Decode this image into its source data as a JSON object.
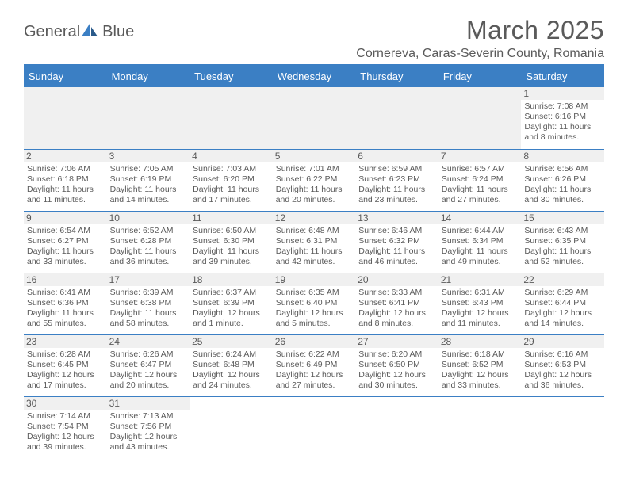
{
  "logo": {
    "text1": "General",
    "text2": "Blue"
  },
  "title": "March 2025",
  "location": "Cornereva, Caras-Severin County, Romania",
  "colors": {
    "accent": "#3b7fc4",
    "text": "#5a5a5a",
    "daybg": "#f0f0f0",
    "bg": "#ffffff"
  },
  "typography": {
    "title_fontsize": 32,
    "location_fontsize": 16,
    "header_fontsize": 13,
    "cell_fontsize": 10.5
  },
  "weekdays": [
    "Sunday",
    "Monday",
    "Tuesday",
    "Wednesday",
    "Thursday",
    "Friday",
    "Saturday"
  ],
  "weeks": [
    [
      null,
      null,
      null,
      null,
      null,
      null,
      {
        "d": "1",
        "sr": "7:08 AM",
        "ss": "6:16 PM",
        "dl": "11 hours and 8 minutes."
      }
    ],
    [
      {
        "d": "2",
        "sr": "7:06 AM",
        "ss": "6:18 PM",
        "dl": "11 hours and 11 minutes."
      },
      {
        "d": "3",
        "sr": "7:05 AM",
        "ss": "6:19 PM",
        "dl": "11 hours and 14 minutes."
      },
      {
        "d": "4",
        "sr": "7:03 AM",
        "ss": "6:20 PM",
        "dl": "11 hours and 17 minutes."
      },
      {
        "d": "5",
        "sr": "7:01 AM",
        "ss": "6:22 PM",
        "dl": "11 hours and 20 minutes."
      },
      {
        "d": "6",
        "sr": "6:59 AM",
        "ss": "6:23 PM",
        "dl": "11 hours and 23 minutes."
      },
      {
        "d": "7",
        "sr": "6:57 AM",
        "ss": "6:24 PM",
        "dl": "11 hours and 27 minutes."
      },
      {
        "d": "8",
        "sr": "6:56 AM",
        "ss": "6:26 PM",
        "dl": "11 hours and 30 minutes."
      }
    ],
    [
      {
        "d": "9",
        "sr": "6:54 AM",
        "ss": "6:27 PM",
        "dl": "11 hours and 33 minutes."
      },
      {
        "d": "10",
        "sr": "6:52 AM",
        "ss": "6:28 PM",
        "dl": "11 hours and 36 minutes."
      },
      {
        "d": "11",
        "sr": "6:50 AM",
        "ss": "6:30 PM",
        "dl": "11 hours and 39 minutes."
      },
      {
        "d": "12",
        "sr": "6:48 AM",
        "ss": "6:31 PM",
        "dl": "11 hours and 42 minutes."
      },
      {
        "d": "13",
        "sr": "6:46 AM",
        "ss": "6:32 PM",
        "dl": "11 hours and 46 minutes."
      },
      {
        "d": "14",
        "sr": "6:44 AM",
        "ss": "6:34 PM",
        "dl": "11 hours and 49 minutes."
      },
      {
        "d": "15",
        "sr": "6:43 AM",
        "ss": "6:35 PM",
        "dl": "11 hours and 52 minutes."
      }
    ],
    [
      {
        "d": "16",
        "sr": "6:41 AM",
        "ss": "6:36 PM",
        "dl": "11 hours and 55 minutes."
      },
      {
        "d": "17",
        "sr": "6:39 AM",
        "ss": "6:38 PM",
        "dl": "11 hours and 58 minutes."
      },
      {
        "d": "18",
        "sr": "6:37 AM",
        "ss": "6:39 PM",
        "dl": "12 hours and 1 minute."
      },
      {
        "d": "19",
        "sr": "6:35 AM",
        "ss": "6:40 PM",
        "dl": "12 hours and 5 minutes."
      },
      {
        "d": "20",
        "sr": "6:33 AM",
        "ss": "6:41 PM",
        "dl": "12 hours and 8 minutes."
      },
      {
        "d": "21",
        "sr": "6:31 AM",
        "ss": "6:43 PM",
        "dl": "12 hours and 11 minutes."
      },
      {
        "d": "22",
        "sr": "6:29 AM",
        "ss": "6:44 PM",
        "dl": "12 hours and 14 minutes."
      }
    ],
    [
      {
        "d": "23",
        "sr": "6:28 AM",
        "ss": "6:45 PM",
        "dl": "12 hours and 17 minutes."
      },
      {
        "d": "24",
        "sr": "6:26 AM",
        "ss": "6:47 PM",
        "dl": "12 hours and 20 minutes."
      },
      {
        "d": "25",
        "sr": "6:24 AM",
        "ss": "6:48 PM",
        "dl": "12 hours and 24 minutes."
      },
      {
        "d": "26",
        "sr": "6:22 AM",
        "ss": "6:49 PM",
        "dl": "12 hours and 27 minutes."
      },
      {
        "d": "27",
        "sr": "6:20 AM",
        "ss": "6:50 PM",
        "dl": "12 hours and 30 minutes."
      },
      {
        "d": "28",
        "sr": "6:18 AM",
        "ss": "6:52 PM",
        "dl": "12 hours and 33 minutes."
      },
      {
        "d": "29",
        "sr": "6:16 AM",
        "ss": "6:53 PM",
        "dl": "12 hours and 36 minutes."
      }
    ],
    [
      {
        "d": "30",
        "sr": "7:14 AM",
        "ss": "7:54 PM",
        "dl": "12 hours and 39 minutes."
      },
      {
        "d": "31",
        "sr": "7:13 AM",
        "ss": "7:56 PM",
        "dl": "12 hours and 43 minutes."
      },
      null,
      null,
      null,
      null,
      null
    ]
  ],
  "labels": {
    "sunrise": "Sunrise:",
    "sunset": "Sunset:",
    "daylight": "Daylight:"
  }
}
